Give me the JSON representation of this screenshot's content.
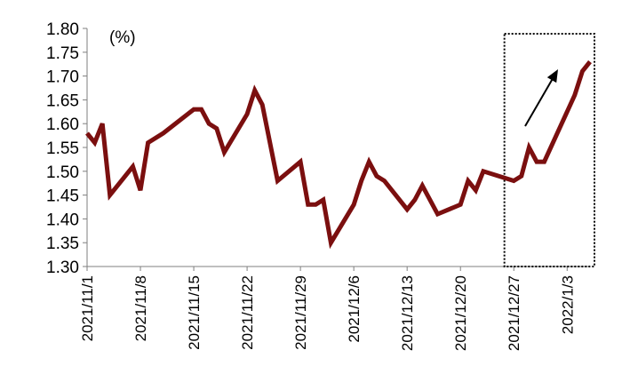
{
  "chart_data": {
    "type": "line",
    "unit_label": "(%)",
    "ylim": [
      1.3,
      1.8
    ],
    "y_ticks": [
      "1.30",
      "1.35",
      "1.40",
      "1.45",
      "1.50",
      "1.55",
      "1.60",
      "1.65",
      "1.70",
      "1.75",
      "1.80"
    ],
    "x_tick_labels": [
      "2021/11/1",
      "2021/11/8",
      "2021/11/15",
      "2021/11/22",
      "2021/11/29",
      "2021/12/6",
      "2021/12/13",
      "2021/12/20",
      "2021/12/27",
      "2022/1/3"
    ],
    "x_range": [
      "2021-11-01",
      "2022-01-06"
    ],
    "grid": false,
    "highlight_box": {
      "from": "2021-12-26",
      "to": "2022-01-06"
    },
    "arrow": true,
    "series": [
      {
        "color": "#7b0f0f",
        "points": [
          [
            "2021-11-01",
            1.58
          ],
          [
            "2021-11-02",
            1.56
          ],
          [
            "2021-11-03",
            1.6
          ],
          [
            "2021-11-04",
            1.45
          ],
          [
            "2021-11-07",
            1.51
          ],
          [
            "2021-11-08",
            1.46
          ],
          [
            "2021-11-09",
            1.56
          ],
          [
            "2021-11-11",
            1.58
          ],
          [
            "2021-11-15",
            1.63
          ],
          [
            "2021-11-16",
            1.63
          ],
          [
            "2021-11-17",
            1.6
          ],
          [
            "2021-11-18",
            1.59
          ],
          [
            "2021-11-19",
            1.54
          ],
          [
            "2021-11-22",
            1.62
          ],
          [
            "2021-11-23",
            1.67
          ],
          [
            "2021-11-24",
            1.64
          ],
          [
            "2021-11-26",
            1.48
          ],
          [
            "2021-11-29",
            1.52
          ],
          [
            "2021-11-30",
            1.43
          ],
          [
            "2021-12-01",
            1.43
          ],
          [
            "2021-12-02",
            1.44
          ],
          [
            "2021-12-03",
            1.35
          ],
          [
            "2021-12-06",
            1.43
          ],
          [
            "2021-12-07",
            1.48
          ],
          [
            "2021-12-08",
            1.52
          ],
          [
            "2021-12-09",
            1.49
          ],
          [
            "2021-12-10",
            1.48
          ],
          [
            "2021-12-13",
            1.42
          ],
          [
            "2021-12-14",
            1.44
          ],
          [
            "2021-12-15",
            1.47
          ],
          [
            "2021-12-17",
            1.41
          ],
          [
            "2021-12-20",
            1.43
          ],
          [
            "2021-12-21",
            1.48
          ],
          [
            "2021-12-22",
            1.46
          ],
          [
            "2021-12-23",
            1.5
          ],
          [
            "2021-12-27",
            1.48
          ],
          [
            "2021-12-28",
            1.49
          ],
          [
            "2021-12-29",
            1.55
          ],
          [
            "2021-12-30",
            1.52
          ],
          [
            "2021-12-31",
            1.52
          ],
          [
            "2022-01-04",
            1.66
          ],
          [
            "2022-01-05",
            1.71
          ],
          [
            "2022-01-06",
            1.73
          ]
        ]
      }
    ]
  }
}
